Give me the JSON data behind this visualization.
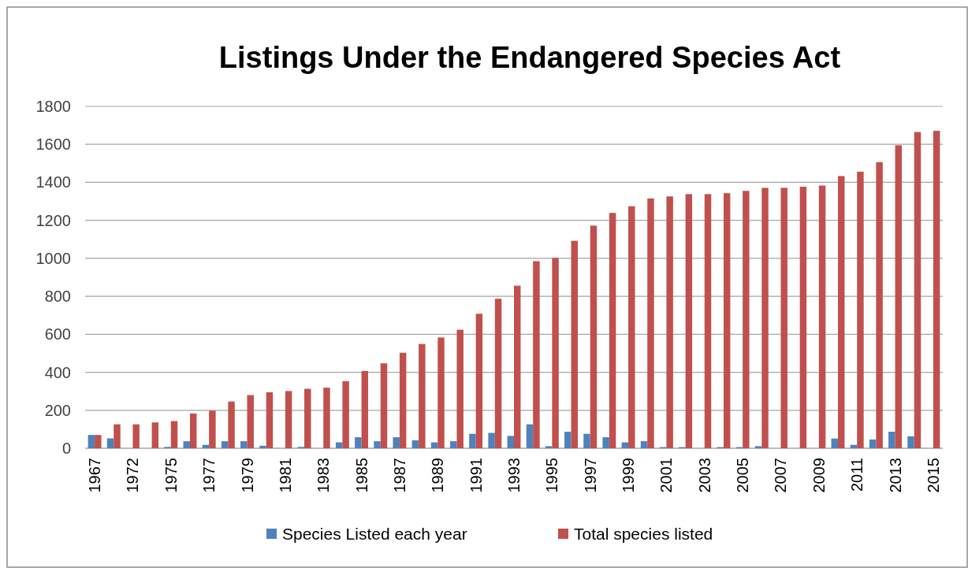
{
  "chart_data": {
    "type": "bar",
    "title": "Listings Under the Endangered Species Act",
    "categories": [
      "1967",
      null,
      "1972",
      null,
      "1975",
      null,
      "1977",
      null,
      "1979",
      null,
      "1981",
      null,
      "1983",
      null,
      "1985",
      null,
      "1987",
      null,
      "1989",
      null,
      "1991",
      null,
      "1993",
      null,
      "1995",
      null,
      "1997",
      null,
      "1999",
      null,
      "2001",
      null,
      "2003",
      null,
      "2005",
      null,
      "2007",
      null,
      "2009",
      null,
      "2011",
      null,
      "2013",
      null,
      "2015"
    ],
    "series": [
      {
        "name": "Species Listed each year",
        "color": "#4f81bd",
        "values": [
          70,
          52,
          0,
          0,
          7,
          37,
          18,
          37,
          37,
          13,
          0,
          7,
          0,
          31,
          58,
          37,
          58,
          42,
          31,
          37,
          76,
          81,
          65,
          126,
          11,
          87,
          76,
          58,
          31,
          37,
          6,
          6,
          0,
          6,
          6,
          11,
          0,
          0,
          0,
          51,
          18,
          46,
          87,
          63,
          0
        ]
      },
      {
        "name": "Total species listed",
        "color": "#c0504d",
        "values": [
          70,
          126,
          126,
          136,
          143,
          183,
          198,
          246,
          280,
          295,
          301,
          313,
          319,
          353,
          407,
          447,
          503,
          549,
          583,
          624,
          708,
          787,
          856,
          985,
          1002,
          1092,
          1172,
          1239,
          1274,
          1315,
          1326,
          1338,
          1338,
          1343,
          1355,
          1371,
          1371,
          1377,
          1383,
          1433,
          1456,
          1506,
          1595,
          1665,
          1671
        ]
      }
    ],
    "ylim": [
      0,
      1800
    ],
    "yticks": [
      0,
      200,
      400,
      600,
      800,
      1000,
      1200,
      1400,
      1600,
      1800
    ],
    "grid": "y",
    "legend": "bottom"
  }
}
